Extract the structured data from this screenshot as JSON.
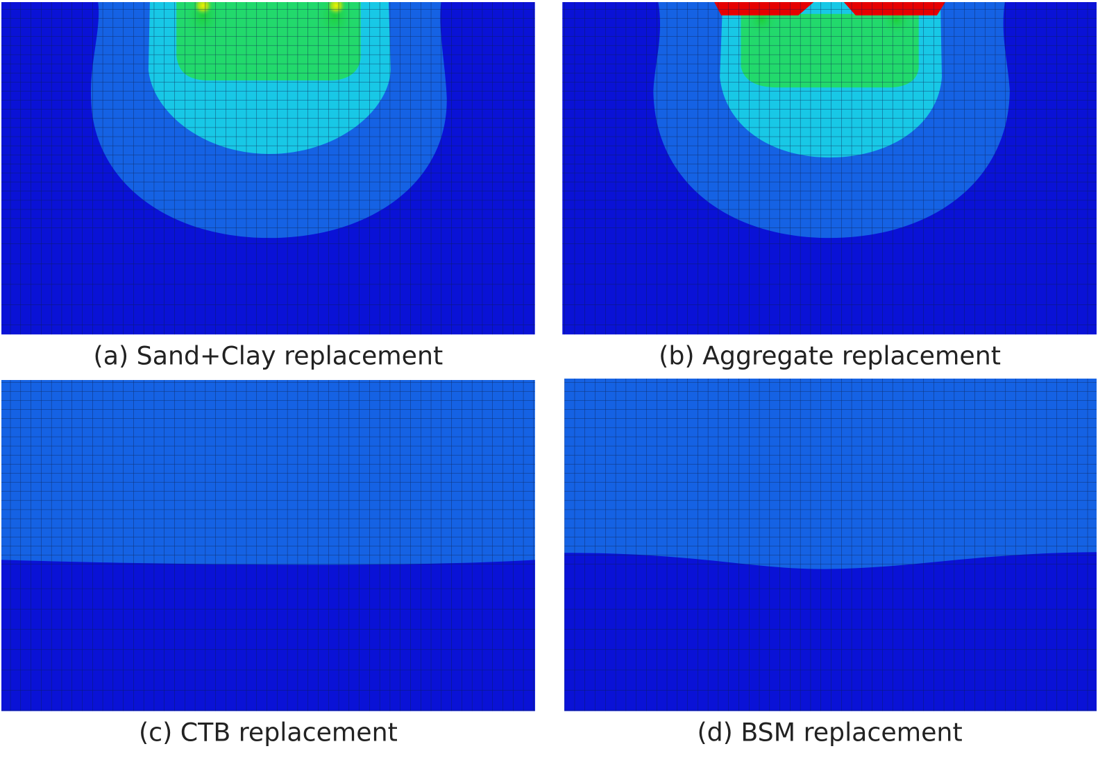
{
  "panels": [
    {
      "caption": "(a) Sand+Clay replacement"
    },
    {
      "caption": "(b) Aggregate replacement"
    },
    {
      "caption": "(c) CTB replacement"
    },
    {
      "caption": "(d) BSM replacement"
    }
  ]
}
